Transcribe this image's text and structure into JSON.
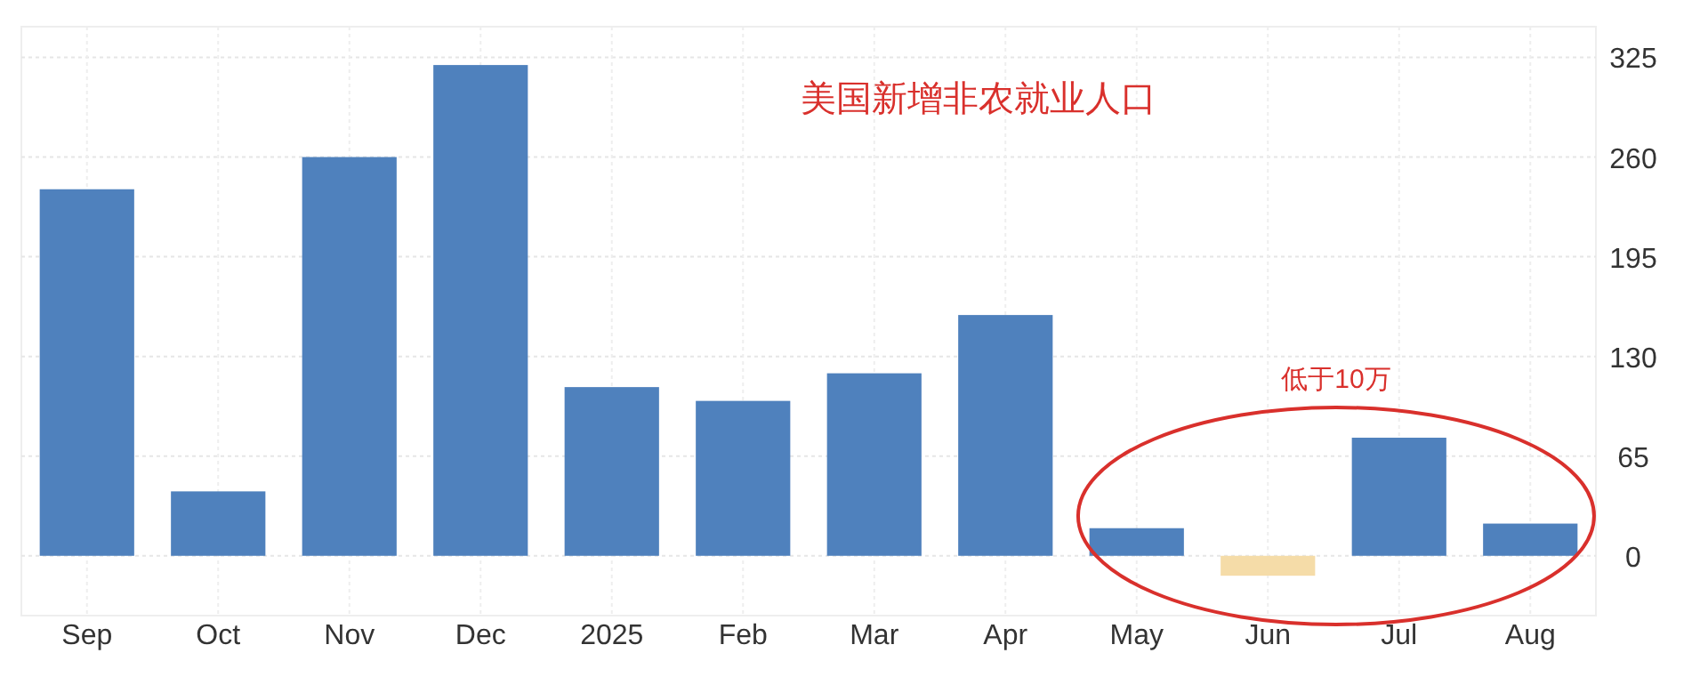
{
  "chart_data": {
    "type": "bar",
    "categories": [
      "Sep",
      "Oct",
      "Nov",
      "Dec",
      "2025",
      "Feb",
      "Mar",
      "Apr",
      "May",
      "Jun",
      "Jul",
      "Aug"
    ],
    "values": [
      239,
      42,
      260,
      320,
      110,
      101,
      119,
      157,
      18,
      -13,
      77,
      21
    ],
    "colors": [
      "#4f81bd",
      "#4f81bd",
      "#4f81bd",
      "#4f81bd",
      "#4f81bd",
      "#4f81bd",
      "#4f81bd",
      "#4f81bd",
      "#4f81bd",
      "#f5dca8",
      "#4f81bd",
      "#4f81bd"
    ],
    "ylim": [
      -39,
      345
    ],
    "yticks": [
      0,
      65,
      130,
      195,
      260,
      325
    ],
    "grid": true,
    "annotations": [
      "美国新增非农就业人口",
      "低于10万"
    ]
  }
}
